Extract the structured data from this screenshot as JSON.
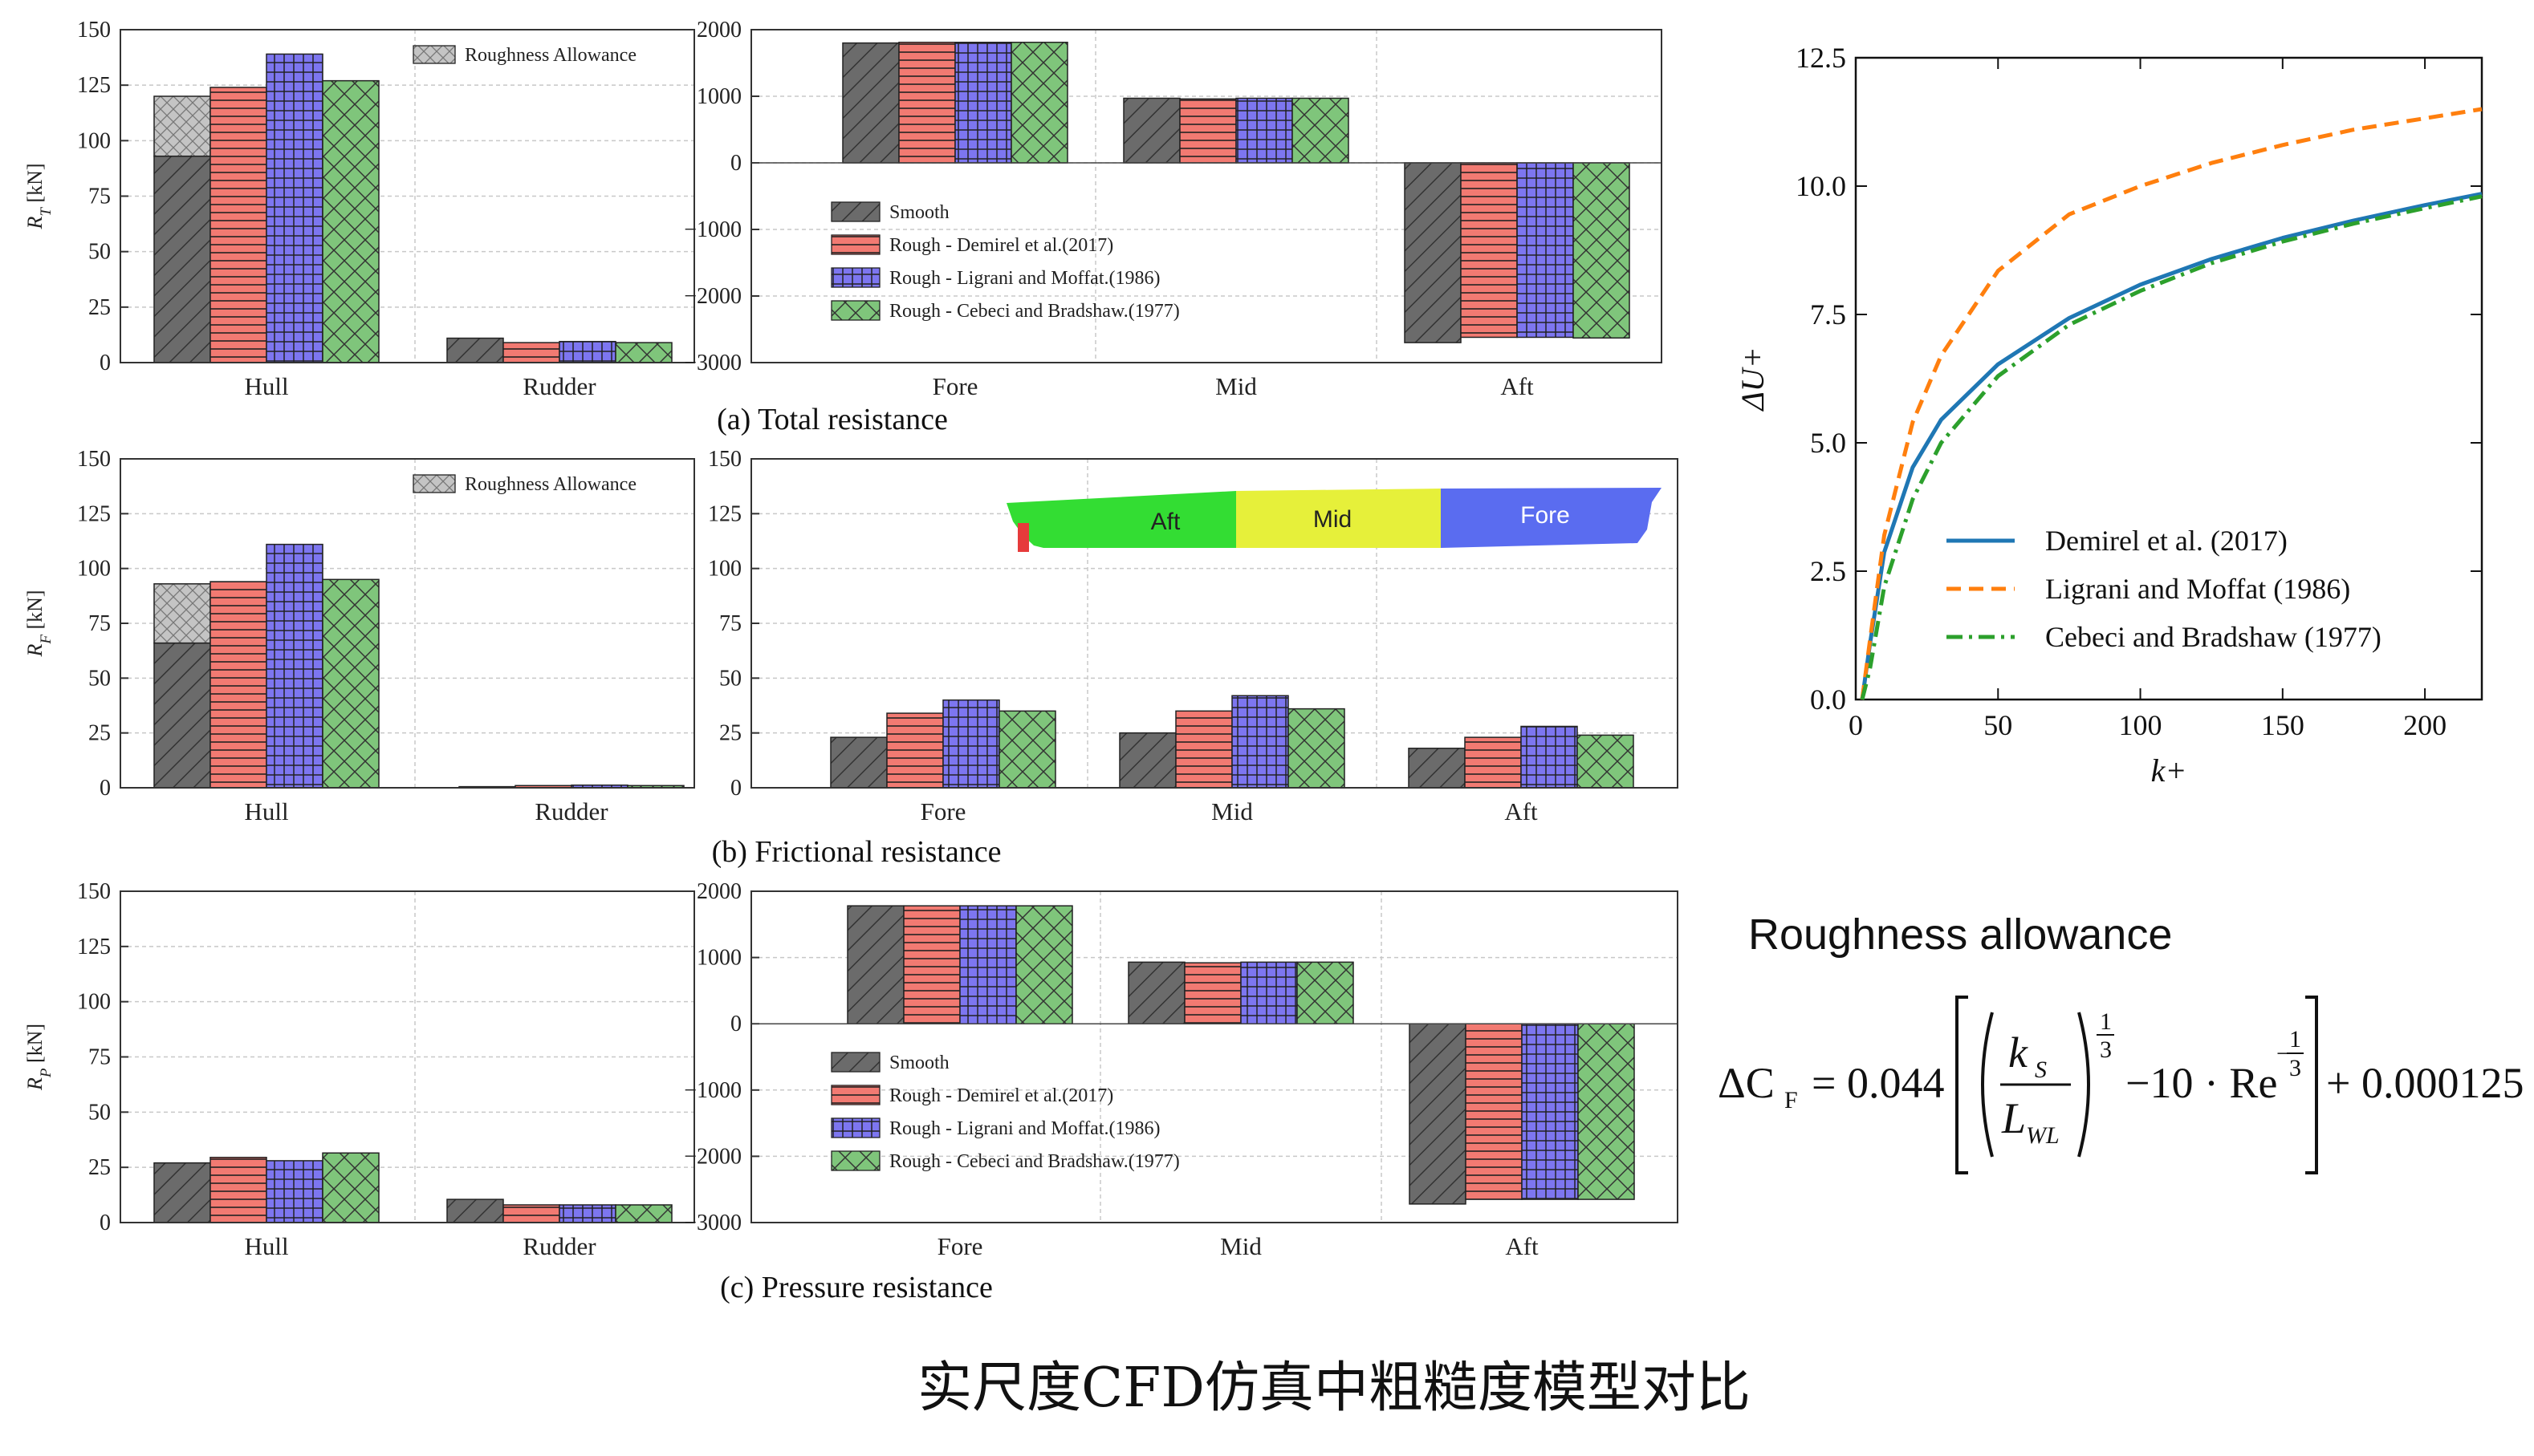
{
  "colors": {
    "smooth": "#6b6b6b",
    "demirel": "#f27a72",
    "ligrani": "#7d76f0",
    "cebeci": "#7fc57b",
    "allowance": "#c4c4c4",
    "line_demirel": "#1f77b4",
    "line_ligrani": "#ff7f0e",
    "line_cebeci": "#2ca02c"
  },
  "captions": {
    "a": "(a) Total resistance",
    "b": "(b) Frictional resistance",
    "c": "(c) Pressure resistance",
    "bottom_title": "实尺度CFD仿真中粗糙度模型对比"
  },
  "legend_bar": {
    "allowance": "Roughness Allowance",
    "smooth": "Smooth",
    "demirel": "Rough - Demirel et al.(2017)",
    "ligrani": "Rough - Ligrani and Moffat.(1986)",
    "cebeci": "Rough - Cebeci and Bradshaw.(1977)"
  },
  "hull_image": {
    "aft": "Aft",
    "mid": "Mid",
    "fore": "Fore"
  },
  "formula": {
    "heading": "Roughness allowance",
    "lhs": "ΔC",
    "lhs_sub": "F",
    "eq": "= 0.044",
    "num": "k",
    "num_sub": "S",
    "den": "L",
    "den_sub": "WL",
    "exp1": "1",
    "exp_den": "3",
    "mid": "−10 · Re",
    "exp2_sign": "−",
    "tail": "+ 0.000125"
  },
  "chart_data": [
    {
      "id": "a-left",
      "type": "bar",
      "ylabel": "R_T [kN]",
      "ylabel_main": "R",
      "ylabel_sub": "T",
      "ylabel_unit": " [kN]",
      "categories": [
        "Hull",
        "Rudder"
      ],
      "ylim": [
        0,
        150
      ],
      "yticks": [
        0,
        25,
        50,
        75,
        100,
        125,
        150
      ],
      "series": [
        {
          "name": "Smooth",
          "values": [
            93,
            11
          ],
          "allowance": [
            27,
            0
          ]
        },
        {
          "name": "Rough - Demirel et al.(2017)",
          "values": [
            124,
            9
          ]
        },
        {
          "name": "Rough - Ligrani and Moffat.(1986)",
          "values": [
            139,
            9.5
          ]
        },
        {
          "name": "Rough - Cebeci and Bradshaw.(1977)",
          "values": [
            127,
            9
          ]
        }
      ]
    },
    {
      "id": "a-right",
      "type": "bar",
      "categories": [
        "Fore",
        "Mid",
        "Aft"
      ],
      "ylim": [
        -3000,
        2000
      ],
      "yticks": [
        -3000,
        -2000,
        -1000,
        0,
        1000,
        2000
      ],
      "ytick_labels": [
        "−3000",
        "−2000",
        "−1000",
        "0",
        "1000",
        "2000"
      ],
      "series": [
        {
          "name": "Smooth",
          "values": [
            1800,
            970,
            -2700
          ]
        },
        {
          "name": "Rough - Demirel et al.(2017)",
          "values": [
            1810,
            960,
            -2620
          ]
        },
        {
          "name": "Rough - Ligrani and Moffat.(1986)",
          "values": [
            1810,
            970,
            -2620
          ]
        },
        {
          "name": "Rough - Cebeci and Bradshaw.(1977)",
          "values": [
            1810,
            970,
            -2630
          ]
        }
      ]
    },
    {
      "id": "b-left",
      "type": "bar",
      "ylabel": "R_F [kN]",
      "ylabel_main": "R",
      "ylabel_sub": "F",
      "ylabel_unit": " [kN]",
      "categories": [
        "Hull",
        "Rudder"
      ],
      "ylim": [
        0,
        150
      ],
      "yticks": [
        0,
        25,
        50,
        75,
        100,
        125,
        150
      ],
      "series": [
        {
          "name": "Smooth",
          "values": [
            66,
            0.5
          ],
          "allowance": [
            27,
            0
          ]
        },
        {
          "name": "Rough - Demirel et al.(2017)",
          "values": [
            94,
            1
          ]
        },
        {
          "name": "Rough - Ligrani and Moffat.(1986)",
          "values": [
            111,
            1.2
          ]
        },
        {
          "name": "Rough - Cebeci and Bradshaw.(1977)",
          "values": [
            95,
            1
          ]
        }
      ]
    },
    {
      "id": "b-right",
      "type": "bar",
      "categories": [
        "Fore",
        "Mid",
        "Aft"
      ],
      "ylim": [
        0,
        150
      ],
      "yticks": [
        0,
        25,
        50,
        75,
        100,
        125,
        150
      ],
      "series": [
        {
          "name": "Smooth",
          "values": [
            23,
            25,
            18
          ]
        },
        {
          "name": "Rough - Demirel et al.(2017)",
          "values": [
            34,
            35,
            23
          ]
        },
        {
          "name": "Rough - Ligrani and Moffat.(1986)",
          "values": [
            40,
            42,
            28
          ]
        },
        {
          "name": "Rough - Cebeci and Bradshaw.(1977)",
          "values": [
            35,
            36,
            24
          ]
        }
      ]
    },
    {
      "id": "c-left",
      "type": "bar",
      "ylabel": "R_P [kN]",
      "ylabel_main": "R",
      "ylabel_sub": "P",
      "ylabel_unit": " [kN]",
      "categories": [
        "Hull",
        "Rudder"
      ],
      "ylim": [
        0,
        150
      ],
      "yticks": [
        0,
        25,
        50,
        75,
        100,
        125,
        150
      ],
      "series": [
        {
          "name": "Smooth",
          "values": [
            27,
            10.5
          ]
        },
        {
          "name": "Rough - Demirel et al.(2017)",
          "values": [
            29.5,
            8
          ]
        },
        {
          "name": "Rough - Ligrani and Moffat.(1986)",
          "values": [
            28,
            8
          ]
        },
        {
          "name": "Rough - Cebeci and Bradshaw.(1977)",
          "values": [
            31.5,
            8
          ]
        }
      ]
    },
    {
      "id": "c-right",
      "type": "bar",
      "categories": [
        "Fore",
        "Mid",
        "Aft"
      ],
      "ylim": [
        -3000,
        2000
      ],
      "yticks": [
        -3000,
        -2000,
        -1000,
        0,
        1000,
        2000
      ],
      "ytick_labels": [
        "−3000",
        "−2000",
        "−1000",
        "0",
        "1000",
        "2000"
      ],
      "series": [
        {
          "name": "Smooth",
          "values": [
            1780,
            930,
            -2720
          ]
        },
        {
          "name": "Rough - Demirel et al.(2017)",
          "values": [
            1780,
            920,
            -2650
          ]
        },
        {
          "name": "Rough - Ligrani and Moffat.(1986)",
          "values": [
            1780,
            930,
            -2650
          ]
        },
        {
          "name": "Rough - Cebeci and Bradshaw.(1977)",
          "values": [
            1780,
            930,
            -2650
          ]
        }
      ]
    },
    {
      "id": "roughness-functions",
      "type": "line",
      "xlabel": "k+",
      "ylabel": "ΔU+",
      "xlim": [
        0,
        220
      ],
      "ylim": [
        0,
        12.5
      ],
      "xticks": [
        0,
        50,
        100,
        150,
        200
      ],
      "yticks": [
        0,
        2.5,
        5,
        7.5,
        10,
        12.5
      ],
      "ytick_labels": [
        "0.0",
        "2.5",
        "5.0",
        "7.5",
        "10.0",
        "12.5"
      ],
      "series": [
        {
          "name": "Demirel et al. (2017)",
          "x": [
            2.25,
            5,
            10,
            20,
            30,
            50,
            75,
            100,
            125,
            150,
            175,
            200,
            220
          ],
          "y": [
            0,
            1.08,
            2.87,
            4.52,
            5.45,
            6.53,
            7.43,
            8.08,
            8.58,
            8.99,
            9.33,
            9.63,
            9.85
          ]
        },
        {
          "name": "Ligrani and Moffat (1986)",
          "x": [
            2.25,
            5,
            10,
            20,
            30,
            50,
            75,
            100,
            125,
            150,
            175,
            200,
            220
          ],
          "y": [
            0,
            1.15,
            3.2,
            5.4,
            6.7,
            8.35,
            9.45,
            10.0,
            10.45,
            10.8,
            11.1,
            11.32,
            11.5
          ]
        },
        {
          "name": "Cebeci and Bradshaw (1977)",
          "x": [
            2.25,
            5,
            10,
            20,
            30,
            50,
            75,
            100,
            125,
            150,
            175,
            200,
            220
          ],
          "y": [
            0,
            0.6,
            2.2,
            3.9,
            5.0,
            6.3,
            7.3,
            7.96,
            8.5,
            8.92,
            9.27,
            9.57,
            9.8
          ]
        }
      ]
    }
  ]
}
